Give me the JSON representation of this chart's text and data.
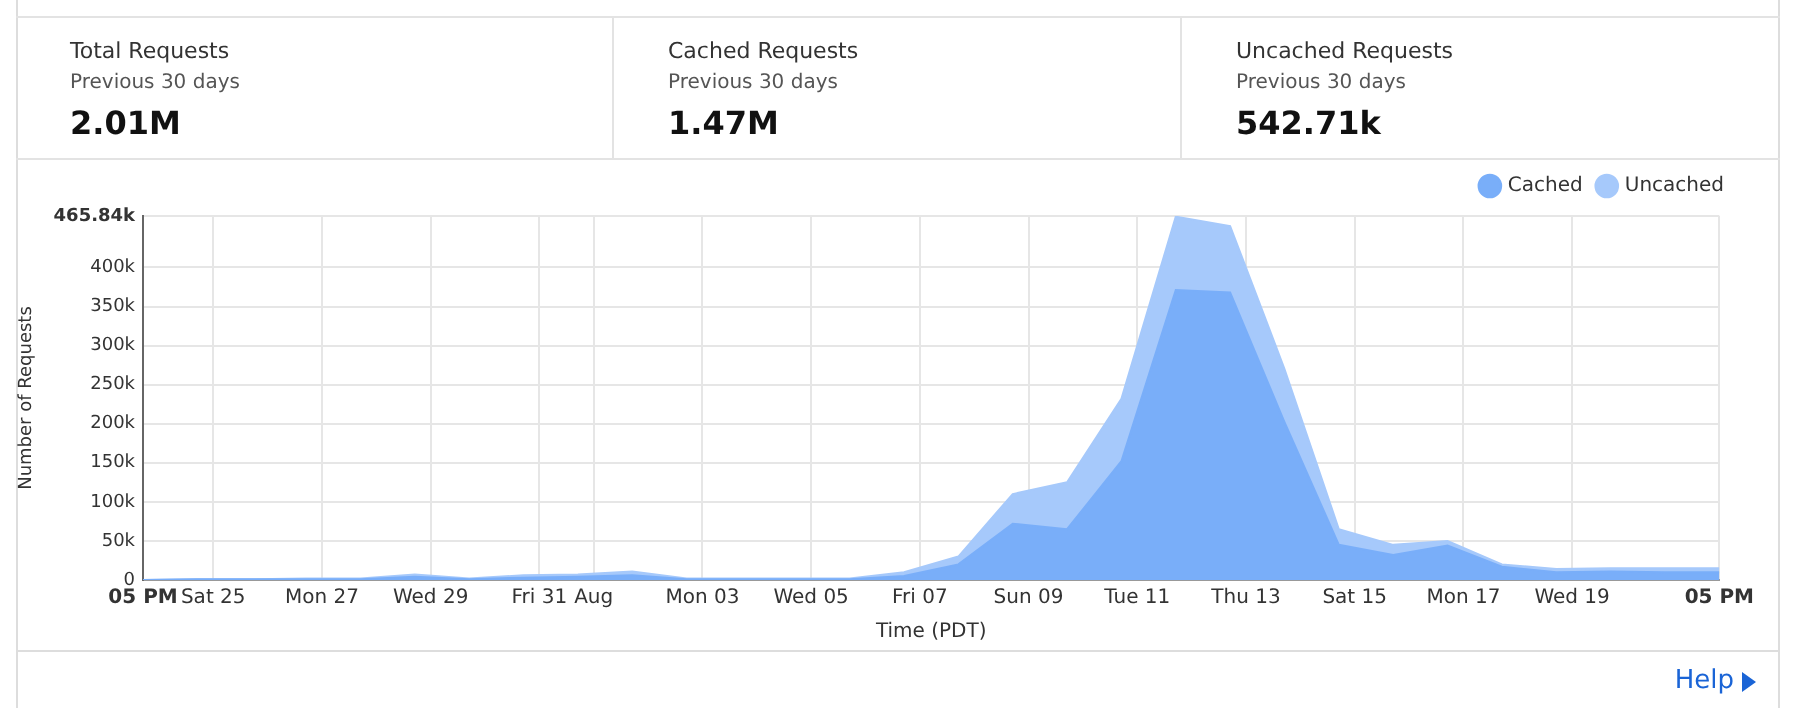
{
  "chart_data": [
    {
      "type": "other",
      "title": "Total Requests",
      "subtitle": "Previous 30 days",
      "annotations": [
        "2.01M"
      ]
    },
    {
      "type": "other",
      "title": "Cached Requests",
      "subtitle": "Previous 30 days",
      "annotations": [
        "1.47M"
      ]
    },
    {
      "type": "other",
      "title": "Uncached Requests",
      "subtitle": "Previous 30 days",
      "annotations": [
        "542.71k"
      ]
    },
    {
      "type": "area",
      "xlabel": "Time (PDT)",
      "ylabel": "Number of Requests",
      "stacked": true,
      "grid": true,
      "legend": "top right",
      "x": [
        "--07-23T17:00",
        "--07-24T17:00",
        "--07-25T17:00",
        "--07-26T17:00",
        "--07-27T17:00",
        "--07-28T17:00",
        "--07-29T17:00",
        "--07-30T17:00",
        "--07-31T17:00",
        "--08-01T17:00",
        "--08-02T17:00",
        "--08-03T17:00",
        "--08-04T17:00",
        "--08-05T17:00",
        "--08-06T17:00",
        "--08-07T17:00",
        "--08-08T17:00",
        "--08-09T17:00",
        "--08-10T17:00",
        "--08-11T17:00",
        "--08-12T17:00",
        "--08-13T17:00",
        "--08-14T17:00",
        "--08-15T17:00",
        "--08-16T17:00",
        "--08-17T17:00",
        "--08-18T17:00",
        "--08-19T17:00",
        "--08-20T17:00",
        "--08-21T17:00"
      ],
      "series": [
        {
          "name": "Cached",
          "color": "#79aef9",
          "values": [
            0,
            1000,
            1000,
            1000,
            1000,
            4000,
            1000,
            3000,
            4000,
            6000,
            1000,
            1000,
            1000,
            1000,
            5000,
            20000,
            72000,
            65000,
            152000,
            371000,
            368000,
            202000,
            45000,
            32000,
            44000,
            17000,
            10000,
            11000,
            10000,
            10000
          ]
        },
        {
          "name": "Uncached",
          "color": "#a6c9fb",
          "values": [
            0,
            0,
            0,
            1000,
            1000,
            3000,
            1000,
            3000,
            3000,
            5000,
            1000,
            1000,
            1000,
            1000,
            5000,
            10000,
            38000,
            60000,
            80000,
            94000,
            85000,
            68000,
            20000,
            13000,
            6000,
            3000,
            4000,
            4000,
            5000,
            5000
          ]
        }
      ],
      "xlim": [
        "--07-23T17:00",
        "--08-21T17:00"
      ],
      "xticks": [
        {
          "value": "--07-23T17:00",
          "label": "05 PM"
        },
        {
          "value": "--07-25",
          "label": "Sat 25"
        },
        {
          "value": "--07-27",
          "label": "Mon 27"
        },
        {
          "value": "--07-29",
          "label": "Wed 29"
        },
        {
          "value": "--07-31",
          "label": "Fri 31"
        },
        {
          "value": "--08-01",
          "label": "Aug"
        },
        {
          "value": "--08-03",
          "label": "Mon 03"
        },
        {
          "value": "--08-05",
          "label": "Wed 05"
        },
        {
          "value": "--08-07",
          "label": "Fri 07"
        },
        {
          "value": "--08-09",
          "label": "Sun 09"
        },
        {
          "value": "--08-11",
          "label": "Tue 11"
        },
        {
          "value": "--08-13",
          "label": "Thu 13"
        },
        {
          "value": "--08-15",
          "label": "Sat 15"
        },
        {
          "value": "--08-17",
          "label": "Mon 17"
        },
        {
          "value": "--08-19",
          "label": "Wed 19"
        },
        {
          "value": "--08-21T17:00",
          "label": "05 PM"
        }
      ],
      "ylim": [
        0,
        465840
      ],
      "yticks": [
        0,
        {
          "value": 50000,
          "label": "50k"
        },
        {
          "value": 100000,
          "label": "100k"
        },
        {
          "value": 150000,
          "label": "150k"
        },
        {
          "value": 200000,
          "label": "200k"
        },
        {
          "value": 250000,
          "label": "250k"
        },
        {
          "value": 300000,
          "label": "300k"
        },
        {
          "value": 350000,
          "label": "350k"
        },
        {
          "value": 400000,
          "label": "400k"
        },
        {
          "value": 465840,
          "label": "465.84k"
        }
      ],
      "annotations": [
        "Help"
      ]
    }
  ]
}
